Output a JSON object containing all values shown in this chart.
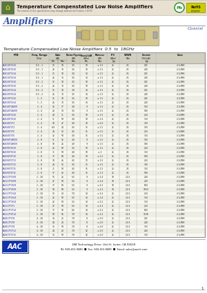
{
  "title": "Temperature Compenstated Low Noise Amplifiers",
  "subtitle": "The content of this specification may change without notification ©2009",
  "section_title": "Amplifiers",
  "connector_type": "Coaxial",
  "table_title": "Temperature Compensated Low Noise Amplifiers  0.5  to  18GHz",
  "col_labels_line1": [
    "P/N",
    "Freq. Range",
    "Gain",
    "Noise Figure",
    "Pout@1dB",
    "Flatness",
    "IP3",
    "VSWR",
    "Current",
    "Case"
  ],
  "col_labels_line2": [
    "",
    "(GHz)",
    "(dB)",
    "(dB)",
    "(dBm)",
    "(dB)",
    "(dBm)",
    "",
    "+5V(mA)",
    ""
  ],
  "col_labels_line3": [
    "",
    "",
    "Min  Max",
    "Max",
    "Min",
    "Max",
    "Typ",
    "Max",
    "Typ",
    ""
  ],
  "rows": [
    [
      "LA2510T1S10",
      "0.5 - 1",
      "15",
      "18",
      "3.5",
      "10",
      "± 1.5",
      "25",
      "2:1",
      "125",
      "4 1/2MH"
    ],
    [
      "LA2510T2S10",
      "0.5 - 1",
      "26",
      "30",
      "3.5",
      "10",
      "± 1.5",
      "25",
      "2:1",
      "200",
      "4 1/2MH"
    ],
    [
      "LA2510T1S14",
      "0.5 - 1",
      "15",
      "18",
      "3.0",
      "14",
      "± 1.5",
      "25",
      "2:1",
      "125",
      "4 1/2MH"
    ],
    [
      "LA2510T2S14",
      "0.5 - 1",
      "26",
      "30",
      "3.5",
      "14",
      "± 1.5",
      "25",
      "2:1",
      "200",
      "4 1/2MH"
    ],
    [
      "LA2520T1S10",
      "0.5 - 2",
      "15",
      "18",
      "3.5",
      "10",
      "± 1.5",
      "25",
      "2:1",
      "125",
      "4 1/2MH"
    ],
    [
      "LA2520T2S10",
      "0.5 - 2",
      "26",
      "30",
      "3.5",
      "10",
      "± 1.5",
      "25",
      "2:1",
      "200",
      "4 1/2MH"
    ],
    [
      "LA2520T1S14",
      "0.5 - 2",
      "15",
      "18",
      "3.0",
      "14",
      "± 1.5",
      "25",
      "2:1",
      "125",
      "4 1/2MH"
    ],
    [
      "LA2520T2S14",
      "0.5 - 2",
      "26",
      "30",
      "3.5",
      "14",
      "± 1.5",
      "25",
      "2:1",
      "200",
      "4 1/2MH"
    ],
    [
      "LA2530T1S10",
      "1 - 2",
      "15",
      "18",
      "3.5",
      "10",
      "± 1.5",
      "25",
      "2:1",
      "125",
      "4 1/2MH"
    ],
    [
      "LA2530T2S14",
      "1 - 2",
      "26",
      "30",
      "3.5",
      "14",
      "± 1.5",
      "25",
      "2:1",
      "200",
      "4 1/2MH"
    ],
    [
      "LA2540T1A009",
      "2 - 4",
      "12",
      "17",
      "4.0",
      "9",
      "± 1.5",
      "25",
      "2:1",
      "150",
      "4 1/2MH"
    ],
    [
      "LA2540T2A009",
      "2 - 4",
      "26",
      "34",
      "3.5",
      "9",
      "± 1.5",
      "25",
      "2:1",
      "180",
      "4 1/2MH"
    ],
    [
      "LA2540T2S10",
      "2 - 4",
      "24",
      "31",
      "3.5",
      "10",
      "± 1.5",
      "25",
      "2:1",
      "250",
      "4 1/4MH"
    ],
    [
      "LA2540T3S10",
      "2 - 4",
      "31",
      "50",
      "4.0",
      "10",
      "± 1.4",
      "25",
      "2:1",
      "350",
      "4 1/2MH"
    ],
    [
      "LA2540T2T1",
      "2 - 4",
      "18",
      "27",
      "4.0",
      "10",
      "± 2.0",
      "25",
      "2:1",
      "300",
      "4 1/2MH"
    ],
    [
      "LA2040T2T3",
      "2 - 4",
      "6.0",
      "24",
      "4.5",
      "15",
      "± 1.5",
      "25",
      "2:1",
      "150",
      "4 1/2MH"
    ],
    [
      "LA2040T2T5",
      "2 - 4",
      "24",
      "53",
      "4.5",
      "15",
      "± 1.5",
      "25",
      "2:1",
      "250",
      "4 1/4MH"
    ],
    [
      "LA2040T3T5",
      "2 - 4",
      "32",
      "50",
      "4.0",
      "15",
      "± 1.5",
      "25",
      "2:1",
      "350",
      "4 1/2MH"
    ],
    [
      "LA2590T1A009",
      "2 - 8",
      "11",
      "12",
      "4.0",
      "9",
      "± 1.5",
      "25",
      "2:1",
      "150",
      "4 1/2MH"
    ],
    [
      "LA2590T2A009",
      "2 - 8",
      "18",
      "26",
      "4.0",
      "9",
      "± 1.5",
      "25",
      "2:1",
      "180",
      "4 1/2MH"
    ],
    [
      "LA2590T2S10",
      "2 - 8",
      "22",
      "50",
      "3.5",
      "10",
      "± 1.5",
      "25",
      "2:1",
      "250",
      "4 1/2MH"
    ],
    [
      "LA2590T3S10",
      "2 - 8",
      "31",
      "50",
      "4.0",
      "10",
      "± 3",
      "25",
      "2:1",
      "350",
      "4 1/2MH"
    ],
    [
      "LA2590T4T10",
      "2 - 8",
      "37",
      "60",
      "4.0",
      "10",
      "± 2.2",
      "25",
      "2:1",
      "500",
      "4 1/2MH"
    ],
    [
      "LA2590T2T13",
      "2 - 8",
      "18",
      "26",
      "4.5",
      "13",
      "± 1.5",
      "25",
      "2:1",
      "250",
      "4 1/2MH"
    ],
    [
      "LA2590T2T15",
      "2 - 8",
      "24",
      "52",
      "3.5",
      "15",
      "± 1.5",
      "25",
      "2:1",
      "300",
      "4 1/2MH"
    ],
    [
      "LA2590T3T15",
      "2 - 8",
      "31",
      "50",
      "4.5",
      "15",
      "± 1.5",
      "25",
      "2:1",
      "350",
      "4 1/2MH"
    ],
    [
      "LA2590T4T15",
      "2 - 8",
      "37",
      "46",
      "4.0",
      "15",
      "± 1.3",
      "25",
      "2:1",
      "500",
      "4 1/2MH"
    ],
    [
      "LA2117T1S09",
      "2 - 18",
      "15",
      "22",
      "5.5",
      "9",
      "± 2.4",
      "18",
      "2.2:1",
      "200",
      "4 1/2MH"
    ],
    [
      "LA2117T2S09",
      "2 - 18",
      "27",
      "50",
      "5.5",
      "9",
      "± 2.4",
      "18",
      "2.2:1",
      "250",
      "4 1/2MH"
    ],
    [
      "LA2117T3S09",
      "2 - 18",
      "37",
      "56",
      "5.5",
      "9",
      "± 2.2",
      "18",
      "2.2:1",
      "650",
      "4 1/2MH"
    ],
    [
      "LA2117T4S09",
      "2 - 18",
      "56",
      "60",
      "5.5",
      "9",
      "± 2.2",
      "18",
      "2.2:1",
      "1650",
      "4 1/2MH"
    ],
    [
      "LA2117T1S14",
      "2 - 18",
      "15",
      "20",
      "7.0",
      "14",
      "± 2.4",
      "25",
      "2.2:1",
      "250",
      "4 1/2MH"
    ],
    [
      "LA2117T2S14",
      "2 - 18",
      "22",
      "50",
      "5.5",
      "14",
      "± 2.4",
      "25",
      "2.2:1",
      "350",
      "4 1/2MH"
    ],
    [
      "LA2117T3S14",
      "2 - 18",
      "22",
      "50",
      "5.5",
      "14",
      "± 2.2",
      "25",
      "2.2:1",
      "350",
      "4 1/2MH"
    ],
    [
      "LA2117T2T1",
      "2 - 18",
      "27",
      "50",
      "5.5",
      "14",
      "± 2.2",
      "25",
      "2.2:1",
      "250",
      "4 1/2MH"
    ],
    [
      "LA2117T3T14",
      "2 - 18",
      "37",
      "56",
      "6.5",
      "14",
      "± 2.2",
      "25",
      "2.2:1",
      "650",
      "4 1/2MH"
    ],
    [
      "LA2117T4T14",
      "2 - 18",
      "50",
      "55",
      "7.0",
      "14",
      "± 2.2",
      "25",
      "2.2:1",
      "1100",
      "4 1/2MH"
    ],
    [
      "LA2817T1T8",
      "4 - 18",
      "14",
      "25",
      "7.0",
      "8",
      "± 2.0",
      "25",
      "2.2:1",
      "125",
      "4 1/2MH"
    ],
    [
      "LA2817T2T8",
      "4 - 18",
      "24",
      "28",
      "7.0",
      "8",
      "± 2.0",
      "25",
      "2.2:1",
      "200",
      "4 1/2MH"
    ],
    [
      "LA2817T3T8",
      "4 - 18",
      "36",
      "50",
      "7.0",
      "8",
      "± 2.0",
      "25",
      "2.2:1",
      "350",
      "4 1/2MH"
    ],
    [
      "LA2817T2T12",
      "4 - 18",
      "24",
      "28",
      "7.0",
      "12",
      "± 2.0",
      "25",
      "2.2:1",
      "200",
      "4 1/2MH"
    ],
    [
      "LA2817T3T12",
      "4 - 18",
      "36",
      "50",
      "7.0",
      "12",
      "± 2.0",
      "25",
      "2.2:1",
      "350",
      "4 1/2MH"
    ]
  ],
  "footer_text1": "188 Technology Drive, Unit H, Irvine, CA 92618",
  "footer_text2": "Tel: 949-453-9680  ■  Fax: 949-453-8689  ■  Email: sales@aacle.com",
  "page_bg": "#ffffff",
  "header_bg": "#e8e0d0",
  "table_header_bg": "#d0cfc0",
  "row_even_bg": "#eeeee6",
  "row_odd_bg": "#f8f8f2"
}
